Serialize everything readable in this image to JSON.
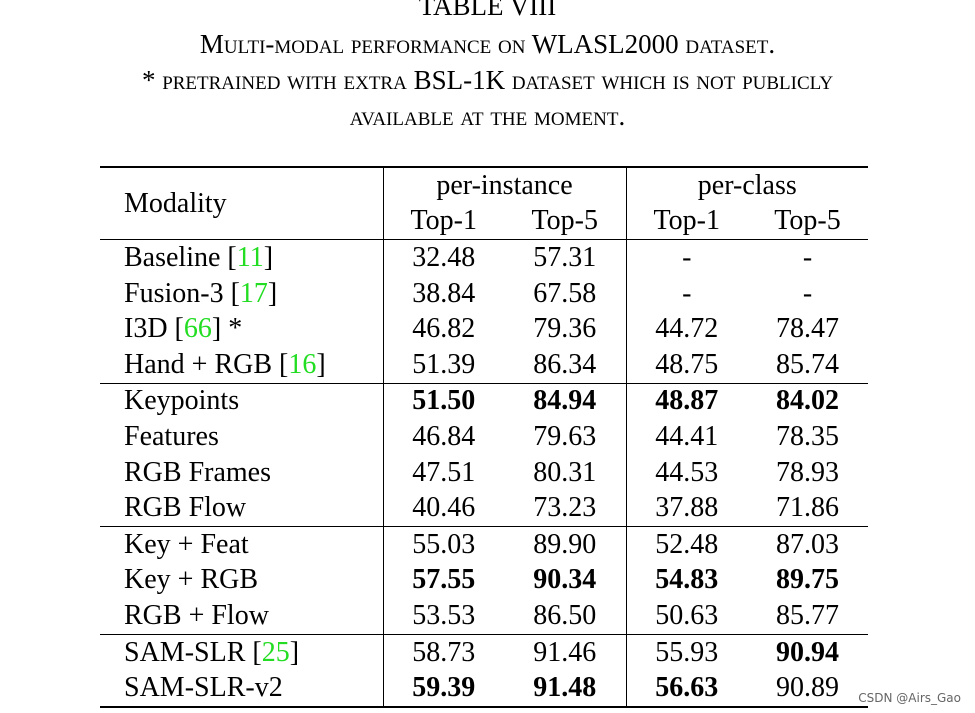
{
  "table": {
    "caption": [
      "TABLE VIII",
      "Multi-modal performance on WLASL2000 dataset.",
      "* pretrained with extra BSL-1K dataset which is not publicly",
      "available at the moment."
    ],
    "header": {
      "modality": "Modality",
      "groups": [
        "per-instance",
        "per-class"
      ],
      "metrics": [
        "Top-1",
        "Top-5",
        "Top-1",
        "Top-5"
      ]
    },
    "groups": [
      {
        "rows": [
          {
            "label": [
              "Baseline [",
              "11",
              "]"
            ],
            "cells": [
              "32.48",
              "57.31",
              "-",
              "-"
            ]
          },
          {
            "label": [
              "Fusion-3 [",
              "17",
              "]"
            ],
            "cells": [
              "38.84",
              "67.58",
              "-",
              "-"
            ]
          },
          {
            "label": [
              "I3D [",
              "66",
              "] *"
            ],
            "cells": [
              "46.82",
              "79.36",
              "44.72",
              "78.47"
            ]
          },
          {
            "label": [
              "Hand + RGB [",
              "16",
              "]"
            ],
            "cells": [
              "51.39",
              "86.34",
              "48.75",
              "85.74"
            ]
          }
        ]
      },
      {
        "rows": [
          {
            "label": [
              "Keypoints"
            ],
            "cells": [
              "51.50",
              "84.94",
              "48.87",
              "84.02"
            ],
            "bold": [
              true,
              true,
              true,
              true
            ]
          },
          {
            "label": [
              "Features"
            ],
            "cells": [
              "46.84",
              "79.63",
              "44.41",
              "78.35"
            ]
          },
          {
            "label": [
              "RGB Frames"
            ],
            "cells": [
              "47.51",
              "80.31",
              "44.53",
              "78.93"
            ]
          },
          {
            "label": [
              "RGB Flow"
            ],
            "cells": [
              "40.46",
              "73.23",
              "37.88",
              "71.86"
            ]
          }
        ]
      },
      {
        "rows": [
          {
            "label": [
              "Key + Feat"
            ],
            "cells": [
              "55.03",
              "89.90",
              "52.48",
              "87.03"
            ]
          },
          {
            "label": [
              "Key + RGB"
            ],
            "cells": [
              "57.55",
              "90.34",
              "54.83",
              "89.75"
            ],
            "bold": [
              true,
              true,
              true,
              true
            ]
          },
          {
            "label": [
              "RGB + Flow"
            ],
            "cells": [
              "53.53",
              "86.50",
              "50.63",
              "85.77"
            ]
          }
        ]
      },
      {
        "rows": [
          {
            "label": [
              "SAM-SLR [",
              "25",
              "]"
            ],
            "cells": [
              "58.73",
              "91.46",
              "55.93",
              "90.94"
            ],
            "bold": [
              false,
              false,
              false,
              true
            ]
          },
          {
            "label": [
              "SAM-SLR-v2"
            ],
            "cells": [
              "59.39",
              "91.48",
              "56.63",
              "90.89"
            ],
            "bold": [
              true,
              true,
              true,
              false
            ]
          }
        ]
      }
    ]
  },
  "watermark": "CSDN @Airs_Gao"
}
